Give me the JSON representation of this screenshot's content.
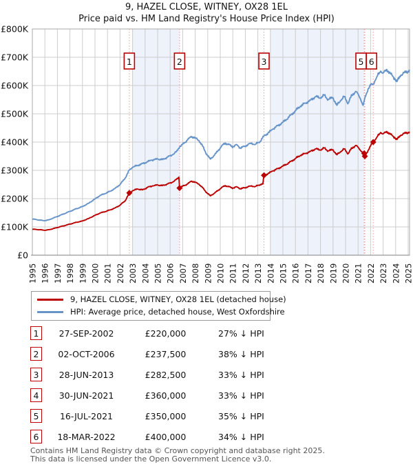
{
  "title": {
    "line1": "9, HAZEL CLOSE, WITNEY, OX28 1EL",
    "line2": "Price paid vs. HM Land Registry's House Price Index (HPI)"
  },
  "chart_data": {
    "type": "line",
    "title": "Price paid vs. HM Land Registry's House Price Index (HPI)",
    "xlim": [
      1995,
      2025.15
    ],
    "ylim": [
      0,
      800
    ],
    "y_unit": "GBP thousands",
    "y_ticks": [
      {
        "v": 0,
        "label": "£0"
      },
      {
        "v": 100,
        "label": "£100K"
      },
      {
        "v": 200,
        "label": "£200K"
      },
      {
        "v": 300,
        "label": "£300K"
      },
      {
        "v": 400,
        "label": "£400K"
      },
      {
        "v": 500,
        "label": "£500K"
      },
      {
        "v": 600,
        "label": "£600K"
      },
      {
        "v": 700,
        "label": "£700K"
      },
      {
        "v": 800,
        "label": "£800K"
      }
    ],
    "x_ticks": [
      1995,
      1996,
      1997,
      1998,
      1999,
      2000,
      2001,
      2002,
      2003,
      2004,
      2005,
      2006,
      2007,
      2008,
      2009,
      2010,
      2011,
      2012,
      2013,
      2014,
      2015,
      2016,
      2017,
      2018,
      2019,
      2020,
      2021,
      2022,
      2023,
      2024,
      2025
    ],
    "grid": true,
    "legend_position": "below",
    "colors": {
      "property": "#bb0000",
      "hpi": "#6694c9",
      "band": "#edf2fb",
      "grid": "#cccccc",
      "border": "#aaaaaa",
      "sale_vline": "#f09999",
      "marker_box_border": "#bb0000"
    },
    "bands": [
      {
        "from": 2003.0,
        "to": 2006.75
      },
      {
        "from": 2014.0,
        "to": 2021.49
      }
    ],
    "sales": [
      {
        "n": "1",
        "date": "27-SEP-2002",
        "year": 2002.74,
        "price_k": 220.0,
        "show_box": true,
        "box_dx": 0
      },
      {
        "n": "2",
        "date": "02-OCT-2006",
        "year": 2006.75,
        "price_k": 237.5,
        "show_box": true,
        "box_dx": 0
      },
      {
        "n": "3",
        "date": "28-JUN-2013",
        "year": 2013.49,
        "price_k": 282.5,
        "show_box": true,
        "box_dx": 0
      },
      {
        "n": "4",
        "date": "30-JUN-2021",
        "year": 2021.49,
        "price_k": 360.0,
        "show_box": false,
        "box_dx": 0
      },
      {
        "n": "5",
        "date": "16-JUL-2021",
        "year": 2021.54,
        "price_k": 350.0,
        "show_box": true,
        "box_dx": -5.5
      },
      {
        "n": "6",
        "date": "18-MAR-2022",
        "year": 2022.21,
        "price_k": 400.0,
        "show_box": true,
        "box_dx": -2.5
      }
    ],
    "series": [
      {
        "name": "HPI: Average price, detached house, West Oxfordshire",
        "color": "#6694c9",
        "points": [
          [
            1995.0,
            128
          ],
          [
            1995.3,
            126
          ],
          [
            1995.6,
            124
          ],
          [
            1996.0,
            122
          ],
          [
            1996.3,
            125
          ],
          [
            1996.6,
            130
          ],
          [
            1997.0,
            137
          ],
          [
            1997.5,
            146
          ],
          [
            1998.0,
            155
          ],
          [
            1998.5,
            164
          ],
          [
            1999.0,
            172
          ],
          [
            1999.5,
            184
          ],
          [
            2000.0,
            199
          ],
          [
            2000.4,
            211
          ],
          [
            2000.8,
            218
          ],
          [
            2001.2,
            226
          ],
          [
            2001.6,
            236
          ],
          [
            2002.0,
            250
          ],
          [
            2002.4,
            272
          ],
          [
            2002.74,
            301
          ],
          [
            2003.0,
            311
          ],
          [
            2003.5,
            319
          ],
          [
            2004.0,
            327
          ],
          [
            2004.5,
            336
          ],
          [
            2005.0,
            340
          ],
          [
            2005.4,
            338
          ],
          [
            2005.8,
            347
          ],
          [
            2006.2,
            355
          ],
          [
            2006.5,
            366
          ],
          [
            2006.75,
            383
          ],
          [
            2007.0,
            392
          ],
          [
            2007.4,
            408
          ],
          [
            2007.7,
            420
          ],
          [
            2008.0,
            415
          ],
          [
            2008.3,
            405
          ],
          [
            2008.6,
            385
          ],
          [
            2008.9,
            358
          ],
          [
            2009.2,
            340
          ],
          [
            2009.5,
            352
          ],
          [
            2009.8,
            368
          ],
          [
            2010.1,
            386
          ],
          [
            2010.4,
            396
          ],
          [
            2010.7,
            391
          ],
          [
            2011.0,
            383
          ],
          [
            2011.3,
            391
          ],
          [
            2011.6,
            379
          ],
          [
            2012.0,
            386
          ],
          [
            2012.4,
            396
          ],
          [
            2012.8,
            392
          ],
          [
            2013.2,
            403
          ],
          [
            2013.49,
            422
          ],
          [
            2013.8,
            431
          ],
          [
            2014.2,
            446
          ],
          [
            2014.6,
            458
          ],
          [
            2015.0,
            470
          ],
          [
            2015.5,
            489
          ],
          [
            2016.0,
            511
          ],
          [
            2016.4,
            527
          ],
          [
            2016.8,
            538
          ],
          [
            2017.2,
            548
          ],
          [
            2017.6,
            561
          ],
          [
            2018.0,
            556
          ],
          [
            2018.3,
            566
          ],
          [
            2018.6,
            551
          ],
          [
            2019.0,
            557
          ],
          [
            2019.3,
            530
          ],
          [
            2019.6,
            547
          ],
          [
            2019.9,
            561
          ],
          [
            2020.2,
            537
          ],
          [
            2020.5,
            565
          ],
          [
            2020.8,
            579
          ],
          [
            2021.0,
            570
          ],
          [
            2021.2,
            552
          ],
          [
            2021.4,
            530
          ],
          [
            2021.6,
            562
          ],
          [
            2021.8,
            589
          ],
          [
            2022.0,
            601
          ],
          [
            2022.21,
            606
          ],
          [
            2022.5,
            631
          ],
          [
            2022.8,
            651
          ],
          [
            2023.0,
            644
          ],
          [
            2023.3,
            656
          ],
          [
            2023.6,
            641
          ],
          [
            2023.9,
            626
          ],
          [
            2024.1,
            614
          ],
          [
            2024.4,
            636
          ],
          [
            2024.7,
            646
          ],
          [
            2025.0,
            650
          ],
          [
            2025.1,
            656
          ]
        ]
      },
      {
        "name": "9, HAZEL CLOSE, WITNEY, OX28 1EL (detached house)",
        "color": "#bb0000",
        "points": [
          [
            1995.0,
            92
          ],
          [
            1995.3,
            91
          ],
          [
            1995.6,
            90
          ],
          [
            1996.0,
            88
          ],
          [
            1996.3,
            90
          ],
          [
            1996.6,
            93
          ],
          [
            1997.0,
            98
          ],
          [
            1997.5,
            104
          ],
          [
            1998.0,
            110
          ],
          [
            1998.5,
            116
          ],
          [
            1999.0,
            121
          ],
          [
            1999.5,
            130
          ],
          [
            2000.0,
            141
          ],
          [
            2000.4,
            149
          ],
          [
            2000.8,
            154
          ],
          [
            2001.2,
            160
          ],
          [
            2001.6,
            167
          ],
          [
            2002.0,
            177
          ],
          [
            2002.4,
            192
          ],
          [
            2002.74,
            220
          ],
          [
            2003.0,
            228
          ],
          [
            2003.4,
            234
          ],
          [
            2003.8,
            231
          ],
          [
            2004.2,
            240
          ],
          [
            2004.6,
            245
          ],
          [
            2005.0,
            248
          ],
          [
            2005.4,
            246
          ],
          [
            2005.8,
            252
          ],
          [
            2006.2,
            258
          ],
          [
            2006.5,
            268
          ],
          [
            2006.7,
            276
          ],
          [
            2006.75,
            237.5
          ],
          [
            2007.0,
            244
          ],
          [
            2007.4,
            252
          ],
          [
            2007.7,
            262
          ],
          [
            2008.0,
            258
          ],
          [
            2008.3,
            251
          ],
          [
            2008.6,
            238
          ],
          [
            2008.9,
            222
          ],
          [
            2009.2,
            210
          ],
          [
            2009.5,
            218
          ],
          [
            2009.8,
            228
          ],
          [
            2010.1,
            239
          ],
          [
            2010.4,
            246
          ],
          [
            2010.7,
            242
          ],
          [
            2011.0,
            237
          ],
          [
            2011.3,
            242
          ],
          [
            2011.6,
            235
          ],
          [
            2012.0,
            239
          ],
          [
            2012.4,
            245
          ],
          [
            2012.8,
            243
          ],
          [
            2013.2,
            250
          ],
          [
            2013.4,
            252
          ],
          [
            2013.49,
            282.5
          ],
          [
            2013.8,
            288
          ],
          [
            2014.2,
            298
          ],
          [
            2014.6,
            306
          ],
          [
            2015.0,
            315
          ],
          [
            2015.5,
            327
          ],
          [
            2016.0,
            342
          ],
          [
            2016.4,
            353
          ],
          [
            2016.8,
            360
          ],
          [
            2017.2,
            367
          ],
          [
            2017.6,
            376
          ],
          [
            2018.0,
            372
          ],
          [
            2018.3,
            379
          ],
          [
            2018.6,
            369
          ],
          [
            2019.0,
            373
          ],
          [
            2019.3,
            355
          ],
          [
            2019.6,
            366
          ],
          [
            2019.9,
            376
          ],
          [
            2020.2,
            359
          ],
          [
            2020.5,
            378
          ],
          [
            2020.8,
            388
          ],
          [
            2021.0,
            382
          ],
          [
            2021.2,
            370
          ],
          [
            2021.49,
            360
          ],
          [
            2021.54,
            350
          ],
          [
            2021.8,
            371
          ],
          [
            2022.0,
            386
          ],
          [
            2022.21,
            400
          ],
          [
            2022.5,
            417
          ],
          [
            2022.8,
            434
          ],
          [
            2023.0,
            429
          ],
          [
            2023.3,
            437
          ],
          [
            2023.6,
            427
          ],
          [
            2023.9,
            417
          ],
          [
            2024.1,
            409
          ],
          [
            2024.4,
            424
          ],
          [
            2024.7,
            431
          ],
          [
            2025.0,
            434
          ],
          [
            2025.1,
            437
          ]
        ]
      }
    ]
  },
  "legend": {
    "items": [
      {
        "label": "9, HAZEL CLOSE, WITNEY, OX28 1EL (detached house)",
        "color": "#bb0000"
      },
      {
        "label": "HPI: Average price, detached house, West Oxfordshire",
        "color": "#6694c9"
      }
    ]
  },
  "table": {
    "rows": [
      {
        "num": "1",
        "date": "27-SEP-2002",
        "price": "£220,000",
        "hpi": "27% ↓ HPI"
      },
      {
        "num": "2",
        "date": "02-OCT-2006",
        "price": "£237,500",
        "hpi": "38% ↓ HPI"
      },
      {
        "num": "3",
        "date": "28-JUN-2013",
        "price": "£282,500",
        "hpi": "33% ↓ HPI"
      },
      {
        "num": "4",
        "date": "30-JUN-2021",
        "price": "£360,000",
        "hpi": "33% ↓ HPI"
      },
      {
        "num": "5",
        "date": "16-JUL-2021",
        "price": "£350,000",
        "hpi": "35% ↓ HPI"
      },
      {
        "num": "6",
        "date": "18-MAR-2022",
        "price": "£400,000",
        "hpi": "34% ↓ HPI"
      }
    ]
  },
  "footer": {
    "line1": "Contains HM Land Registry data © Crown copyright and database right 2025.",
    "line2": "This data is licensed under the Open Government Licence v3.0."
  }
}
